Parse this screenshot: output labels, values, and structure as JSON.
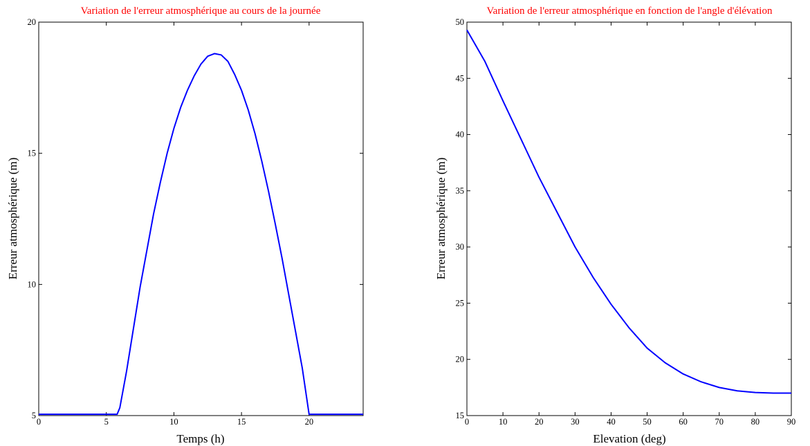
{
  "chart_data": [
    {
      "type": "line",
      "title": "Variation de l'erreur atmosphérique au cours de la journée",
      "xlabel": "Temps (h)",
      "ylabel": "Erreur atmosphérique (m)",
      "xlim": [
        0,
        24
      ],
      "ylim": [
        5,
        20
      ],
      "xticks": [
        0,
        5,
        10,
        15,
        20
      ],
      "yticks": [
        5,
        10,
        15,
        20
      ],
      "grid": false,
      "series": [
        {
          "color": "#0000ff",
          "x": [
            0,
            1,
            2,
            3,
            4,
            5,
            5.5,
            5.8,
            6,
            6.5,
            7,
            7.5,
            8,
            8.5,
            9,
            9.5,
            10,
            10.5,
            11,
            11.5,
            12,
            12.5,
            13,
            13.5,
            14,
            14.5,
            15,
            15.5,
            16,
            16.5,
            17,
            17.5,
            18,
            18.5,
            19,
            19.5,
            20,
            20.5,
            21,
            21.5,
            21.8,
            22,
            23,
            24
          ],
          "y": [
            5.05,
            5.05,
            5.05,
            5.05,
            5.05,
            5.05,
            5.05,
            5.05,
            5.3,
            6.7,
            8.3,
            9.9,
            11.3,
            12.7,
            13.9,
            15.0,
            15.95,
            16.75,
            17.4,
            17.95,
            18.4,
            18.7,
            18.8,
            18.75,
            18.5,
            18.0,
            17.4,
            16.65,
            15.75,
            14.7,
            13.55,
            12.3,
            11.0,
            9.6,
            8.2,
            6.8,
            5.05,
            5.05,
            5.05,
            5.05,
            5.05,
            5.05,
            5.05,
            5.05
          ]
        }
      ]
    },
    {
      "type": "line",
      "title": "Variation de l'erreur atmosphérique en fonction de l'angle d'élévation",
      "xlabel": "Elevation (deg)",
      "ylabel": "Erreur atmosphérique (m)",
      "xlim": [
        0,
        90
      ],
      "ylim": [
        15,
        50
      ],
      "xticks": [
        0,
        10,
        20,
        30,
        40,
        50,
        60,
        70,
        80,
        90
      ],
      "yticks": [
        15,
        20,
        25,
        30,
        35,
        40,
        45,
        50
      ],
      "grid": false,
      "series": [
        {
          "color": "#0000ff",
          "x": [
            0,
            5,
            10,
            15,
            20,
            25,
            30,
            35,
            40,
            45,
            50,
            55,
            60,
            65,
            70,
            75,
            80,
            85,
            90
          ],
          "y": [
            49.3,
            46.5,
            43.0,
            39.6,
            36.2,
            33.1,
            30.0,
            27.3,
            24.9,
            22.8,
            21.0,
            19.7,
            18.7,
            18.0,
            17.5,
            17.2,
            17.05,
            17.0,
            17.0
          ]
        }
      ]
    }
  ]
}
